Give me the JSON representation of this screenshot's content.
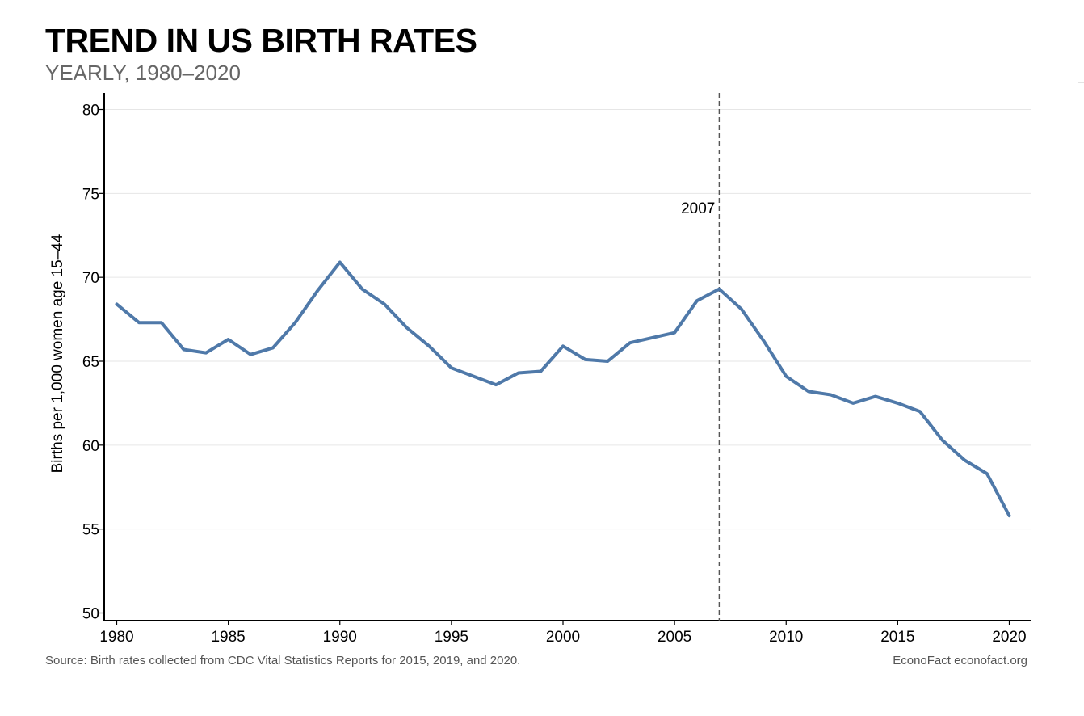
{
  "header": {
    "title": "TREND IN US BIRTH RATES",
    "subtitle": "YEARLY, 1980–2020"
  },
  "footer": {
    "source": "Source: Birth rates collected from CDC Vital Statistics Reports for 2015, 2019, and 2020.",
    "credit": "EconoFact  econofact.org"
  },
  "chart_data": {
    "type": "line",
    "title": "TREND IN US BIRTH RATES",
    "subtitle": "YEARLY, 1980–2020",
    "xlabel": "",
    "ylabel": "Births per 1,000 women age 15–44",
    "xlim": [
      1980,
      2020
    ],
    "ylim": [
      50,
      80
    ],
    "x_ticks": [
      1980,
      1985,
      1990,
      1995,
      2000,
      2005,
      2010,
      2015,
      2020
    ],
    "y_ticks": [
      50,
      55,
      60,
      65,
      70,
      75,
      80
    ],
    "grid": true,
    "line_color": "#4f79a9",
    "x": [
      1980,
      1981,
      1982,
      1983,
      1984,
      1985,
      1986,
      1987,
      1988,
      1989,
      1990,
      1991,
      1992,
      1993,
      1994,
      1995,
      1996,
      1997,
      1998,
      1999,
      2000,
      2001,
      2002,
      2003,
      2004,
      2005,
      2006,
      2007,
      2008,
      2009,
      2010,
      2011,
      2012,
      2013,
      2014,
      2015,
      2016,
      2017,
      2018,
      2019,
      2020
    ],
    "series": [
      {
        "values": [
          68.4,
          67.3,
          67.3,
          65.7,
          65.5,
          66.3,
          65.4,
          65.8,
          67.3,
          69.2,
          70.9,
          69.3,
          68.4,
          67.0,
          65.9,
          64.6,
          64.1,
          63.6,
          64.3,
          64.4,
          65.9,
          65.1,
          65.0,
          66.1,
          66.4,
          66.7,
          68.6,
          69.3,
          68.1,
          66.2,
          64.1,
          63.2,
          63.0,
          62.5,
          62.9,
          62.5,
          62.0,
          60.3,
          59.1,
          58.3,
          55.8
        ]
      }
    ],
    "annotations": [
      {
        "type": "vline",
        "x": 2007,
        "label": "2007"
      }
    ]
  }
}
